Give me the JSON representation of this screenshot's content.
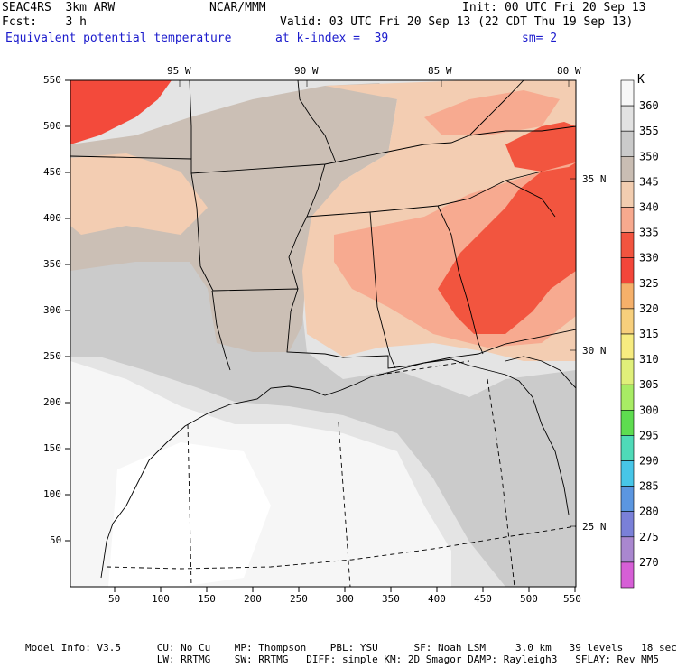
{
  "header": {
    "model": "SEAC4RS  3km ARW",
    "org": "NCAR/MMM",
    "init": "Init: 00 UTC Fri 20 Sep 13",
    "fcst": "Fcst:    3 h",
    "valid": "Valid: 03 UTC Fri 20 Sep 13 (22 CDT Thu 19 Sep 13)",
    "field": "Equivalent potential temperature",
    "level": "at k-index =  39",
    "smooth": "sm= 2"
  },
  "axes": {
    "x_ticks": [
      "50",
      "100",
      "150",
      "200",
      "250",
      "300",
      "350",
      "400",
      "450",
      "500",
      "550"
    ],
    "y_ticks": [
      "550",
      "500",
      "450",
      "400",
      "350",
      "300",
      "250",
      "200",
      "150",
      "100",
      "50"
    ],
    "lon_labels": [
      "95 W",
      "90 W",
      "85 W",
      "80 W"
    ],
    "lat_labels": [
      "35 N",
      "30 N",
      "25 N"
    ]
  },
  "colorbar": {
    "unit": "K",
    "levels": [
      {
        "label": "360",
        "color": "#f7f7f7"
      },
      {
        "label": "355",
        "color": "#e2e2e2"
      },
      {
        "label": "350",
        "color": "#cacaca"
      },
      {
        "label": "345",
        "color": "#c9bdb3"
      },
      {
        "label": "340",
        "color": "#f2cdb0"
      },
      {
        "label": "335",
        "color": "#f7a98e"
      },
      {
        "label": "330",
        "color": "#f2543f"
      },
      {
        "label": "325",
        "color": "#f3463a"
      },
      {
        "label": "320",
        "color": "#f5b06a"
      },
      {
        "label": "315",
        "color": "#f7cf7c"
      },
      {
        "label": "310",
        "color": "#f7ec80"
      },
      {
        "label": "305",
        "color": "#e0f07a"
      },
      {
        "label": "300",
        "color": "#a8ec64"
      },
      {
        "label": "295",
        "color": "#5edc50"
      },
      {
        "label": "290",
        "color": "#4fdab8"
      },
      {
        "label": "285",
        "color": "#47c6e8"
      },
      {
        "label": "280",
        "color": "#5b96e0"
      },
      {
        "label": "275",
        "color": "#7a80d8"
      },
      {
        "label": "270",
        "color": "#a987cf"
      },
      {
        "label": "",
        "color": "#d65fd6"
      }
    ]
  },
  "footer": {
    "line1": "Model Info: V3.5      CU: No Cu    MP: Thompson    PBL: YSU      SF: Noah LSM     3.0 km   39 levels   18 sec",
    "line2": "                      LW: RRTMG    SW: RRTMG   DIFF: simple KM: 2D Smagor DAMP: Rayleigh3   SFLAY: Rev MM5"
  }
}
